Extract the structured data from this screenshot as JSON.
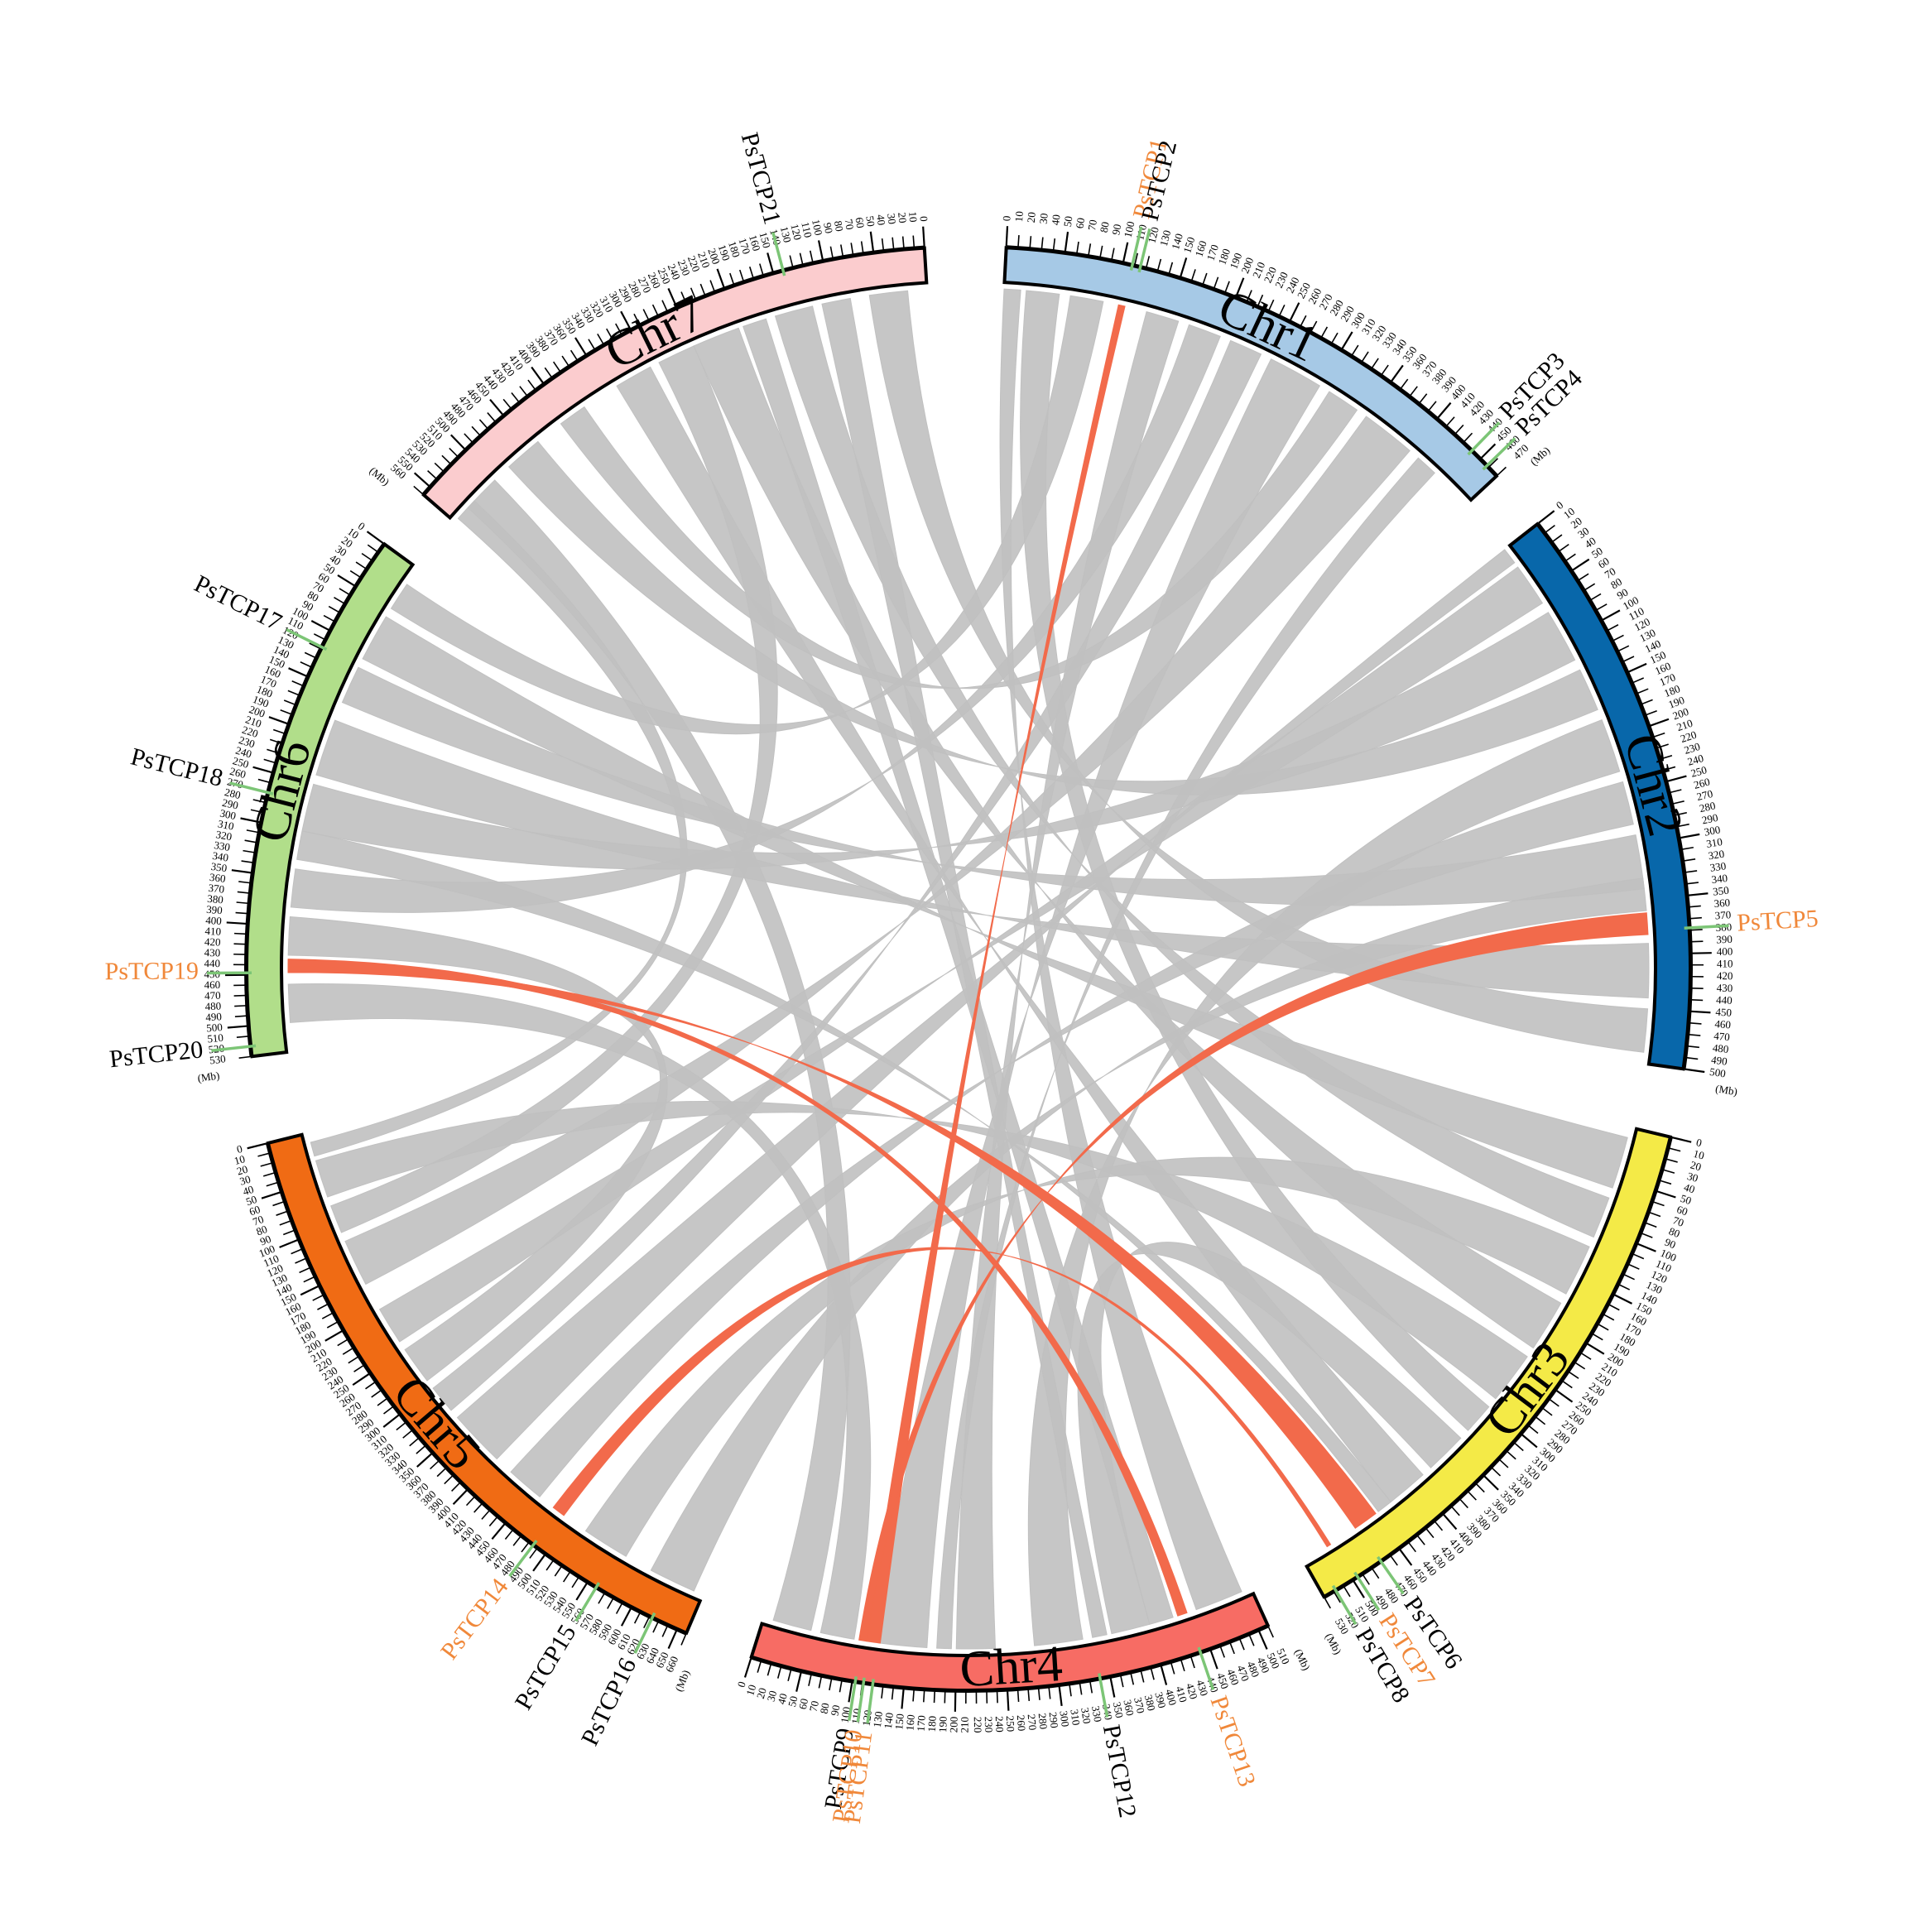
{
  "figure": {
    "unit_label": "(Mb)",
    "colors": {
      "link_normal": "#c0c0c0",
      "link_highlight": "#f26a4b",
      "gene_marker": "#7cc576",
      "gene_label_black": "#000000",
      "gene_label_orange": "#f0883a"
    }
  },
  "chromosomes": [
    {
      "name": "Chr1",
      "length": 470,
      "color": "#a6c9e6",
      "tick_every": 10
    },
    {
      "name": "Chr2",
      "length": 500,
      "color": "#0867aa",
      "tick_every": 10
    },
    {
      "name": "Chr3",
      "length": 530,
      "color": "#f4ea47",
      "tick_every": 10
    },
    {
      "name": "Chr4",
      "length": 510,
      "color": "#f76c64",
      "tick_every": 10
    },
    {
      "name": "Chr5",
      "length": 660,
      "color": "#f06b14",
      "tick_every": 10
    },
    {
      "name": "Chr6",
      "length": 530,
      "color": "#b1de8a",
      "tick_every": 10
    },
    {
      "name": "Chr7",
      "length": 560,
      "color": "#fbccce",
      "tick_every": 10
    }
  ],
  "genes": [
    {
      "id": "PsTCP1",
      "chr": "Chr1",
      "pos": 108,
      "highlight": true
    },
    {
      "id": "PsTCP2",
      "chr": "Chr1",
      "pos": 115,
      "highlight": false
    },
    {
      "id": "PsTCP3",
      "chr": "Chr1",
      "pos": 440,
      "highlight": false
    },
    {
      "id": "PsTCP4",
      "chr": "Chr1",
      "pos": 458,
      "highlight": false
    },
    {
      "id": "PsTCP5",
      "chr": "Chr2",
      "pos": 378,
      "highlight": true
    },
    {
      "id": "PsTCP6",
      "chr": "Chr3",
      "pos": 470,
      "highlight": false
    },
    {
      "id": "PsTCP7",
      "chr": "Chr3",
      "pos": 495,
      "highlight": true
    },
    {
      "id": "PsTCP8",
      "chr": "Chr3",
      "pos": 518,
      "highlight": false
    },
    {
      "id": "PsTCP9",
      "chr": "Chr4",
      "pos": 103,
      "highlight": false
    },
    {
      "id": "PsTCP10",
      "chr": "Chr4",
      "pos": 111,
      "highlight": true
    },
    {
      "id": "PsTCP11",
      "chr": "Chr4",
      "pos": 120,
      "highlight": true
    },
    {
      "id": "PsTCP12",
      "chr": "Chr4",
      "pos": 340,
      "highlight": false
    },
    {
      "id": "PsTCP13",
      "chr": "Chr4",
      "pos": 440,
      "highlight": true
    },
    {
      "id": "PsTCP14",
      "chr": "Chr5",
      "pos": 485,
      "highlight": true
    },
    {
      "id": "PsTCP15",
      "chr": "Chr5",
      "pos": 560,
      "highlight": false
    },
    {
      "id": "PsTCP16",
      "chr": "Chr5",
      "pos": 623,
      "highlight": false
    },
    {
      "id": "PsTCP17",
      "chr": "Chr6",
      "pos": 118,
      "highlight": false
    },
    {
      "id": "PsTCP18",
      "chr": "Chr6",
      "pos": 270,
      "highlight": false
    },
    {
      "id": "PsTCP19",
      "chr": "Chr6",
      "pos": 448,
      "highlight": true
    },
    {
      "id": "PsTCP20",
      "chr": "Chr6",
      "pos": 520,
      "highlight": false
    },
    {
      "id": "PsTCP21",
      "chr": "Chr7",
      "pos": 140,
      "highlight": false
    }
  ],
  "highlight_links": [
    {
      "a": {
        "chr": "Chr1",
        "from": 104,
        "to": 110
      },
      "b": {
        "chr": "Chr4",
        "from": 108,
        "to": 122
      }
    },
    {
      "a": {
        "chr": "Chr2",
        "from": 362,
        "to": 382
      },
      "b": {
        "chr": "Chr4",
        "from": 100,
        "to": 108
      }
    },
    {
      "a": {
        "chr": "Chr3",
        "from": 448,
        "to": 472
      },
      "b": {
        "chr": "Chr6",
        "from": 440,
        "to": 448
      }
    },
    {
      "a": {
        "chr": "Chr4",
        "from": 430,
        "to": 440
      },
      "b": {
        "chr": "Chr6",
        "from": 434,
        "to": 442
      }
    },
    {
      "a": {
        "chr": "Chr5",
        "from": 478,
        "to": 492
      },
      "b": {
        "chr": "Chr3",
        "from": 500,
        "to": 504
      }
    }
  ],
  "background_links": [
    {
      "a": {
        "chr": "Chr1",
        "from": 130,
        "to": 160
      },
      "b": {
        "chr": "Chr4",
        "from": 200,
        "to": 240
      }
    },
    {
      "a": {
        "chr": "Chr1",
        "from": 170,
        "to": 200
      },
      "b": {
        "chr": "Chr6",
        "from": 340,
        "to": 380
      }
    },
    {
      "a": {
        "chr": "Chr1",
        "from": 210,
        "to": 240
      },
      "b": {
        "chr": "Chr5",
        "from": 300,
        "to": 330
      }
    },
    {
      "a": {
        "chr": "Chr1",
        "from": 250,
        "to": 300
      },
      "b": {
        "chr": "Chr4",
        "from": 120,
        "to": 170
      }
    },
    {
      "a": {
        "chr": "Chr1",
        "from": 310,
        "to": 340
      },
      "b": {
        "chr": "Chr7",
        "from": 380,
        "to": 410
      }
    },
    {
      "a": {
        "chr": "Chr1",
        "from": 350,
        "to": 400
      },
      "b": {
        "chr": "Chr5",
        "from": 120,
        "to": 170
      }
    },
    {
      "a": {
        "chr": "Chr1",
        "from": 20,
        "to": 50
      },
      "b": {
        "chr": "Chr3",
        "from": 300,
        "to": 330
      }
    },
    {
      "a": {
        "chr": "Chr1",
        "from": 60,
        "to": 90
      },
      "b": {
        "chr": "Chr6",
        "from": 20,
        "to": 50
      }
    },
    {
      "a": {
        "chr": "Chr2",
        "from": 20,
        "to": 60
      },
      "b": {
        "chr": "Chr5",
        "from": 200,
        "to": 240
      }
    },
    {
      "a": {
        "chr": "Chr2",
        "from": 70,
        "to": 120
      },
      "b": {
        "chr": "Chr6",
        "from": 250,
        "to": 300
      }
    },
    {
      "a": {
        "chr": "Chr2",
        "from": 130,
        "to": 170
      },
      "b": {
        "chr": "Chr7",
        "from": 440,
        "to": 480
      }
    },
    {
      "a": {
        "chr": "Chr2",
        "from": 180,
        "to": 230
      },
      "b": {
        "chr": "Chr4",
        "from": 280,
        "to": 330
      }
    },
    {
      "a": {
        "chr": "Chr2",
        "from": 240,
        "to": 280
      },
      "b": {
        "chr": "Chr5",
        "from": 420,
        "to": 460
      }
    },
    {
      "a": {
        "chr": "Chr2",
        "from": 290,
        "to": 340
      },
      "b": {
        "chr": "Chr6",
        "from": 120,
        "to": 160
      }
    },
    {
      "a": {
        "chr": "Chr2",
        "from": 390,
        "to": 440
      },
      "b": {
        "chr": "Chr6",
        "from": 180,
        "to": 240
      }
    },
    {
      "a": {
        "chr": "Chr2",
        "from": 450,
        "to": 490
      },
      "b": {
        "chr": "Chr7",
        "from": 20,
        "to": 60
      }
    },
    {
      "a": {
        "chr": "Chr3",
        "from": 10,
        "to": 60
      },
      "b": {
        "chr": "Chr6",
        "from": 60,
        "to": 110
      }
    },
    {
      "a": {
        "chr": "Chr3",
        "from": 70,
        "to": 110
      },
      "b": {
        "chr": "Chr7",
        "from": 120,
        "to": 160
      }
    },
    {
      "a": {
        "chr": "Chr3",
        "from": 120,
        "to": 170
      },
      "b": {
        "chr": "Chr5",
        "from": 520,
        "to": 570
      }
    },
    {
      "a": {
        "chr": "Chr3",
        "from": 180,
        "to": 230
      },
      "b": {
        "chr": "Chr7",
        "from": 200,
        "to": 250
      }
    },
    {
      "a": {
        "chr": "Chr3",
        "from": 240,
        "to": 290
      },
      "b": {
        "chr": "Chr5",
        "from": 30,
        "to": 70
      }
    },
    {
      "a": {
        "chr": "Chr3",
        "from": 340,
        "to": 380
      },
      "b": {
        "chr": "Chr4",
        "from": 360,
        "to": 400
      }
    },
    {
      "a": {
        "chr": "Chr3",
        "from": 390,
        "to": 430
      },
      "b": {
        "chr": "Chr7",
        "from": 300,
        "to": 340
      }
    },
    {
      "a": {
        "chr": "Chr4",
        "from": 10,
        "to": 50
      },
      "b": {
        "chr": "Chr7",
        "from": 500,
        "to": 540
      }
    },
    {
      "a": {
        "chr": "Chr4",
        "from": 60,
        "to": 95
      },
      "b": {
        "chr": "Chr6",
        "from": 460,
        "to": 500
      }
    },
    {
      "a": {
        "chr": "Chr4",
        "from": 180,
        "to": 195
      },
      "b": {
        "chr": "Chr1",
        "from": 410,
        "to": 430
      }
    },
    {
      "a": {
        "chr": "Chr4",
        "from": 340,
        "to": 355
      },
      "b": {
        "chr": "Chr7",
        "from": 80,
        "to": 110
      }
    },
    {
      "a": {
        "chr": "Chr4",
        "from": 450,
        "to": 500
      },
      "b": {
        "chr": "Chr1",
        "from": 0,
        "to": 15
      }
    },
    {
      "a": {
        "chr": "Chr5",
        "from": 10,
        "to": 25
      },
      "b": {
        "chr": "Chr7",
        "from": 530,
        "to": 555
      }
    },
    {
      "a": {
        "chr": "Chr5",
        "from": 80,
        "to": 110
      },
      "b": {
        "chr": "Chr7",
        "from": 250,
        "to": 290
      }
    },
    {
      "a": {
        "chr": "Chr5",
        "from": 250,
        "to": 290
      },
      "b": {
        "chr": "Chr6",
        "from": 390,
        "to": 430
      }
    },
    {
      "a": {
        "chr": "Chr5",
        "from": 340,
        "to": 400
      },
      "b": {
        "chr": "Chr2",
        "from": 0,
        "to": 15
      }
    },
    {
      "a": {
        "chr": "Chr5",
        "from": 600,
        "to": 650
      },
      "b": {
        "chr": "Chr2",
        "from": 330,
        "to": 360
      }
    },
    {
      "a": {
        "chr": "Chr6",
        "from": 300,
        "to": 330
      },
      "b": {
        "chr": "Chr3",
        "from": 430,
        "to": 445
      }
    },
    {
      "a": {
        "chr": "Chr7",
        "from": 170,
        "to": 195
      },
      "b": {
        "chr": "Chr4",
        "from": 400,
        "to": 425
      }
    }
  ]
}
